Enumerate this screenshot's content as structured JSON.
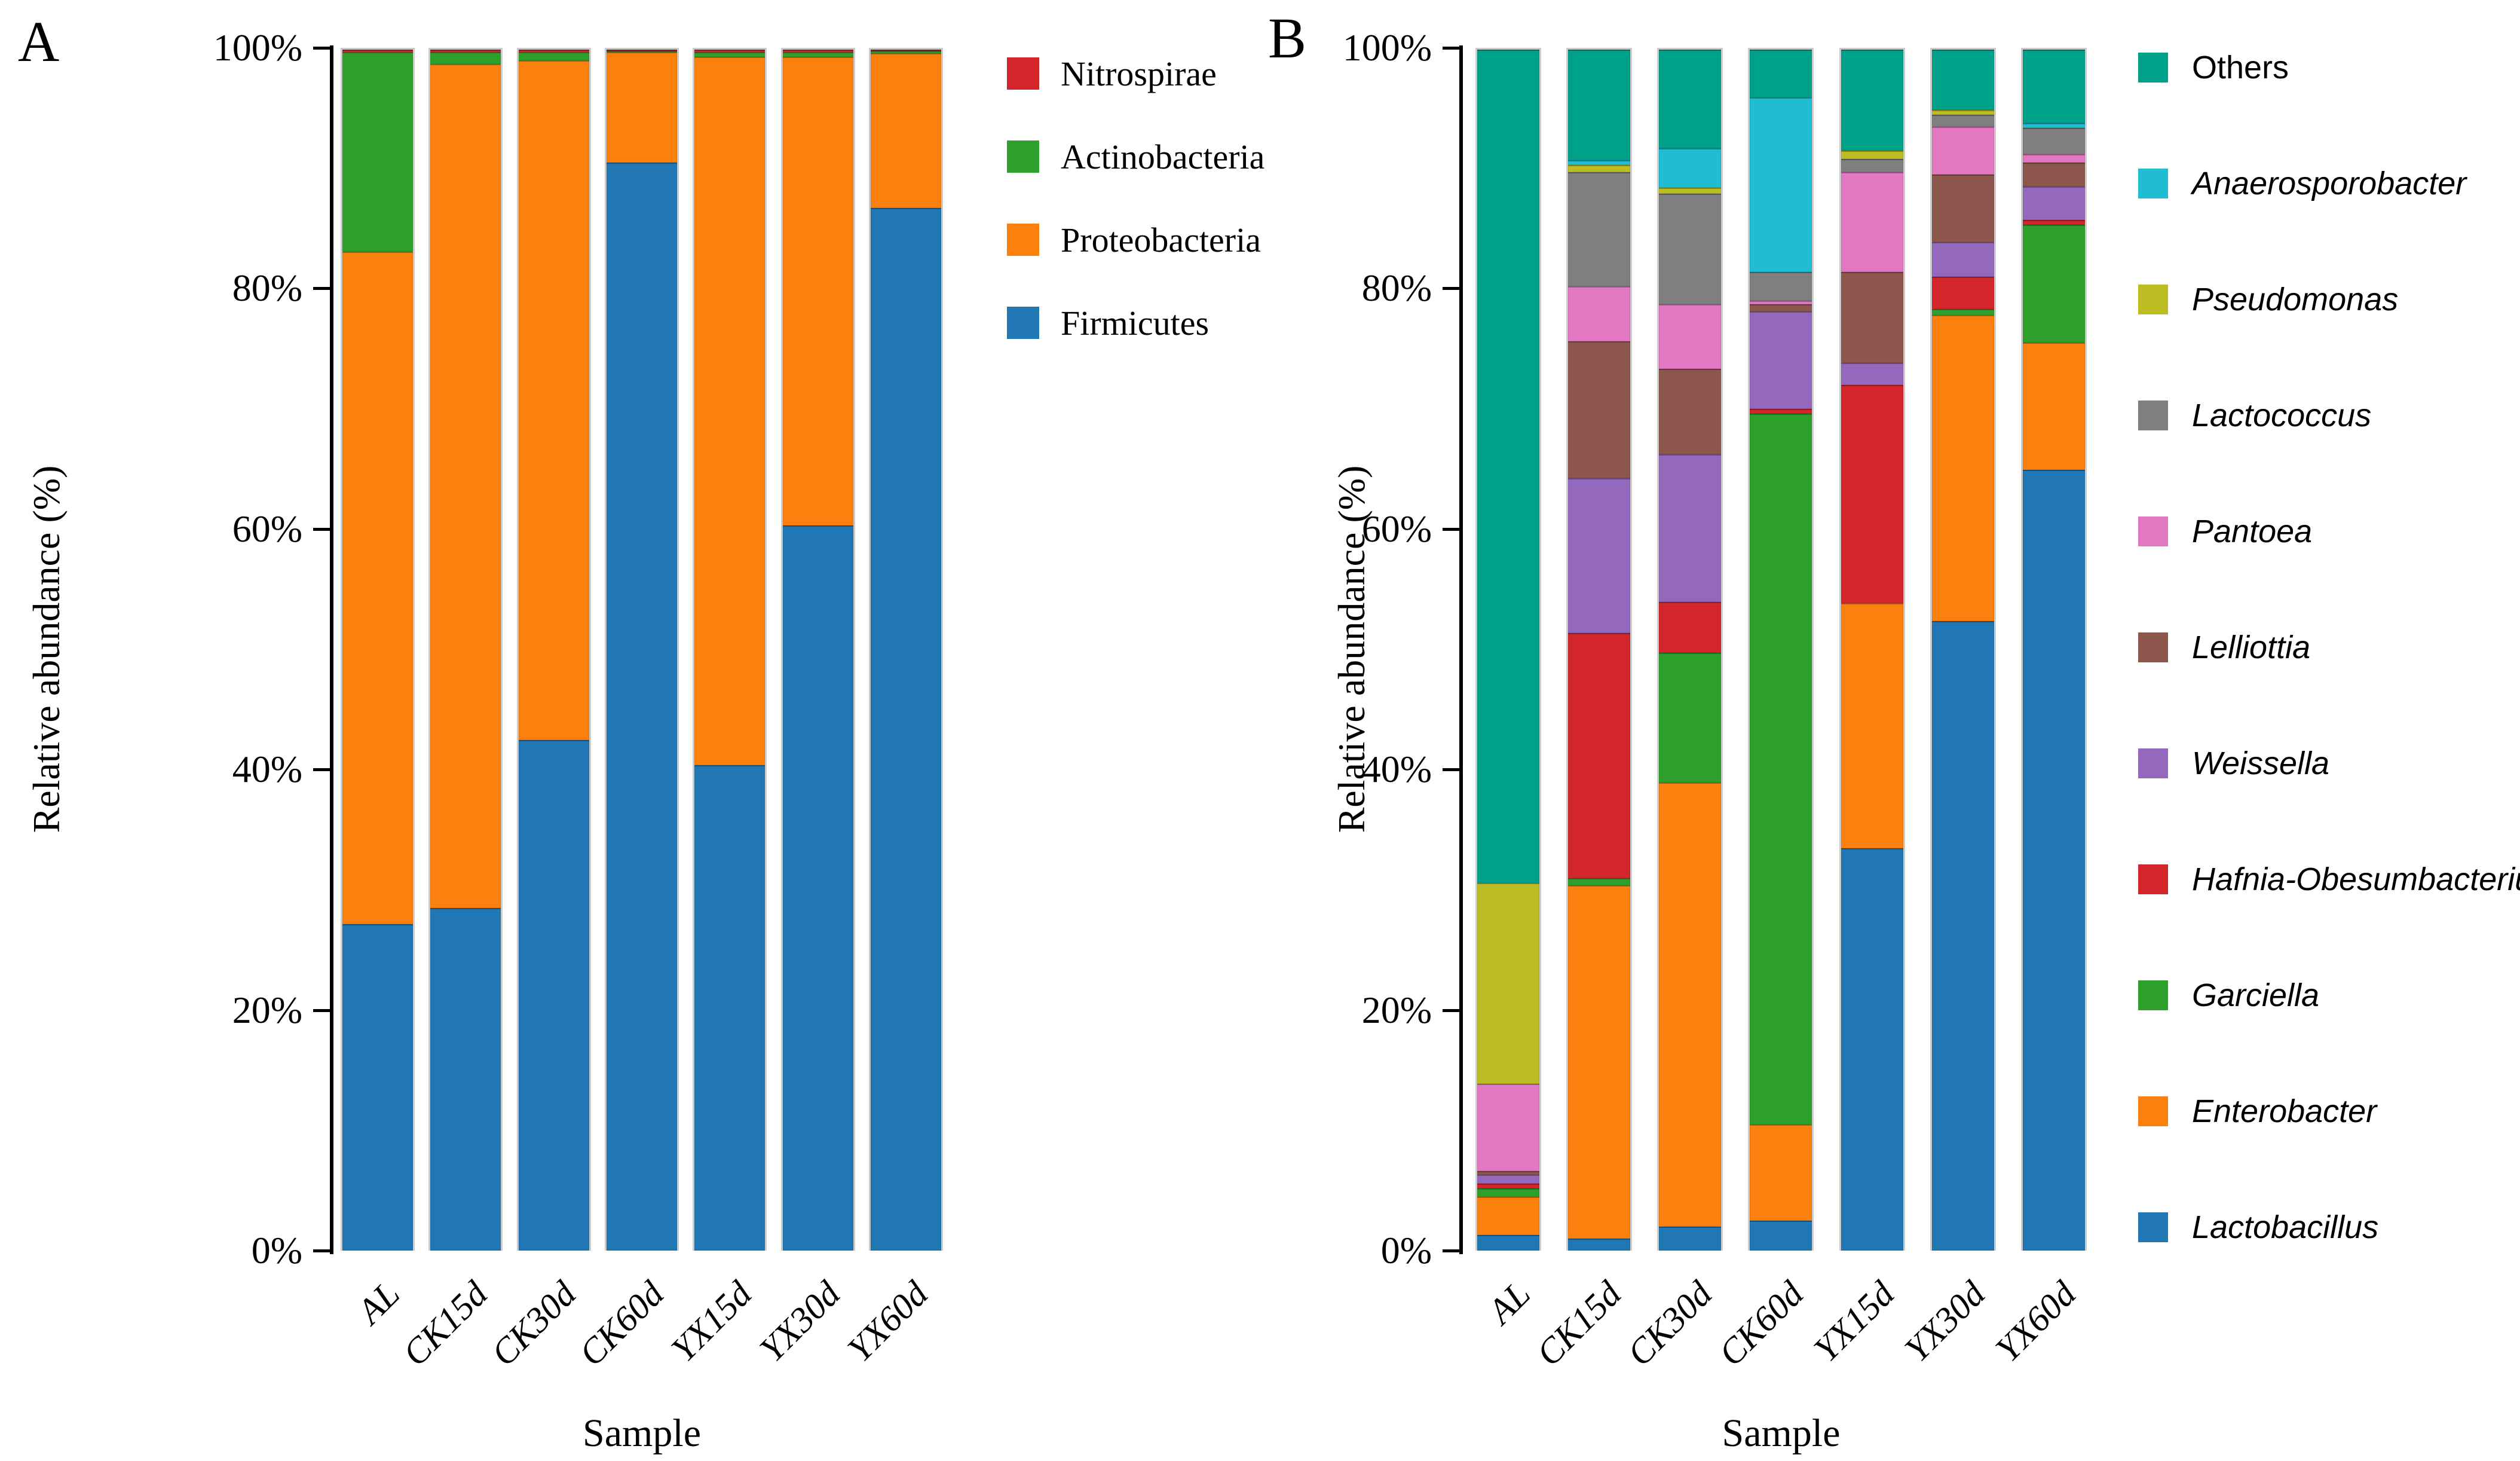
{
  "figure": {
    "background": "#ffffff",
    "bar_edge_color": "#cbcbcb",
    "axis_color": "#000000"
  },
  "chart_data": [
    {
      "type": "bar",
      "stacked": true,
      "panel_letter": "A",
      "title": "",
      "xlabel": "Sample",
      "ylabel": "Relative abundance (%)",
      "ylim": [
        0,
        100
      ],
      "grid": false,
      "legend_position": "right",
      "legend_italic": false,
      "yticks": [
        "0%",
        "20%",
        "40%",
        "60%",
        "80%",
        "100%"
      ],
      "categories": [
        "AL",
        "CK15d",
        "CK30d",
        "CK60d",
        "YX15d",
        "YX30d",
        "YX60d"
      ],
      "series": [
        {
          "name": "Firmicutes",
          "color": "#2077b4",
          "values": [
            27.2,
            28.5,
            42.5,
            90.6,
            40.4,
            60.4,
            86.8
          ]
        },
        {
          "name": "Proteobacteria",
          "color": "#fb800e",
          "values": [
            56.0,
            70.3,
            56.6,
            9.2,
            59.0,
            39.0,
            12.9
          ]
        },
        {
          "name": "Actinobacteria",
          "color": "#2ea02c",
          "values": [
            16.6,
            1.0,
            0.7,
            0.1,
            0.4,
            0.4,
            0.2
          ]
        },
        {
          "name": "Nitrospirae",
          "color": "#d3262a",
          "values": [
            0.2,
            0.2,
            0.2,
            0.1,
            0.2,
            0.2,
            0.1
          ]
        }
      ],
      "legend_order": [
        "Nitrospirae",
        "Actinobacteria",
        "Proteobacteria",
        "Firmicutes"
      ]
    },
    {
      "type": "bar",
      "stacked": true,
      "panel_letter": "B",
      "title": "",
      "xlabel": "Sample",
      "ylabel": "Relative abundance (%)",
      "ylim": [
        0,
        100
      ],
      "grid": false,
      "legend_position": "right",
      "legend_italic": true,
      "legend_non_italic_items": [
        "Others"
      ],
      "yticks": [
        "0%",
        "20%",
        "40%",
        "60%",
        "80%",
        "100%"
      ],
      "categories": [
        "AL",
        "CK15d",
        "CK30d",
        "CK60d",
        "YX15d",
        "YX30d",
        "YX60d"
      ],
      "series": [
        {
          "name": "Lactobacillus",
          "color": "#2077b4",
          "values": [
            1.3,
            1.0,
            2.0,
            2.5,
            33.5,
            52.4,
            65.0
          ]
        },
        {
          "name": "Enterobacter",
          "color": "#fb800e",
          "values": [
            3.2,
            29.4,
            37.0,
            8.0,
            20.4,
            25.5,
            10.6
          ]
        },
        {
          "name": "Garciella",
          "color": "#2ea02c",
          "values": [
            0.7,
            0.6,
            10.8,
            59.2,
            0.0,
            0.5,
            9.8
          ]
        },
        {
          "name": "Hafnia-Obesumbacterium",
          "color": "#d3262a",
          "values": [
            0.4,
            20.4,
            4.2,
            0.4,
            18.2,
            2.7,
            0.4
          ]
        },
        {
          "name": "Weissella",
          "color": "#9468bd",
          "values": [
            0.7,
            12.9,
            12.3,
            8.1,
            1.8,
            2.9,
            2.8
          ]
        },
        {
          "name": "Lelliottia",
          "color": "#8d564c",
          "values": [
            0.3,
            11.4,
            7.1,
            0.6,
            7.6,
            5.6,
            2.0
          ]
        },
        {
          "name": "Pantoea",
          "color": "#e378c2",
          "values": [
            7.3,
            4.6,
            5.4,
            0.3,
            8.3,
            4.0,
            0.7
          ]
        },
        {
          "name": "Lactococcus",
          "color": "#7f7f7f",
          "values": [
            0.0,
            9.5,
            9.2,
            2.4,
            1.1,
            1.0,
            2.2
          ]
        },
        {
          "name": "Pseudomonas",
          "color": "#bcbd22",
          "values": [
            16.7,
            0.6,
            0.5,
            0.0,
            0.7,
            0.4,
            0.0
          ]
        },
        {
          "name": "Anaerosporobacter",
          "color": "#1fbcd2",
          "values": [
            0.0,
            0.4,
            3.3,
            14.5,
            0.0,
            0.0,
            0.4
          ]
        },
        {
          "name": "Others",
          "color": "#00a189",
          "values": [
            69.4,
            9.2,
            8.2,
            4.0,
            8.4,
            5.0,
            6.1
          ]
        }
      ],
      "legend_order": [
        "Others",
        "Anaerosporobacter",
        "Pseudomonas",
        "Lactococcus",
        "Pantoea",
        "Lelliottia",
        "Weissella",
        "Hafnia-Obesumbacterium",
        "Garciella",
        "Enterobacter",
        "Lactobacillus"
      ]
    }
  ]
}
